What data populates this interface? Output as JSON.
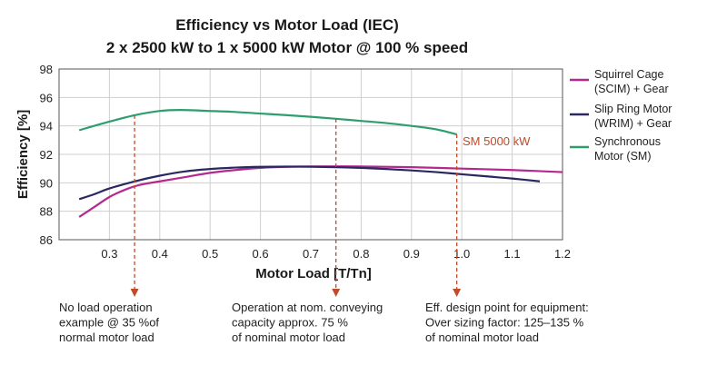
{
  "chart_data": {
    "type": "line",
    "title": "Efficiency vs Motor Load (IEC)",
    "subtitle": "2 x 2500 kW to 1 x 5000 kW Motor @ 100 % speed",
    "xlabel": "Motor Load [T/Tn]",
    "ylabel": "Efficiency [%]",
    "xlim": [
      0.2,
      1.2
    ],
    "ylim": [
      86,
      98
    ],
    "xticks": [
      "0.3",
      "0.4",
      "0.5",
      "0.6",
      "0.7",
      "0.8",
      "0.9",
      "1.0",
      "1.1",
      "1.2"
    ],
    "yticks": [
      "86",
      "88",
      "90",
      "92",
      "94",
      "96",
      "98"
    ],
    "grid": true,
    "legend_position": "right",
    "series": [
      {
        "name": "Squirrel Cage (SCIM) + Gear",
        "legend_lines": [
          "Squirrel Cage",
          "(SCIM) + Gear"
        ],
        "color": "#b5288f",
        "points": [
          [
            0.24,
            87.6
          ],
          [
            0.27,
            88.3
          ],
          [
            0.3,
            89.0
          ],
          [
            0.33,
            89.5
          ],
          [
            0.36,
            89.85
          ],
          [
            0.4,
            90.1
          ],
          [
            0.45,
            90.4
          ],
          [
            0.5,
            90.7
          ],
          [
            0.55,
            90.9
          ],
          [
            0.6,
            91.05
          ],
          [
            0.65,
            91.12
          ],
          [
            0.7,
            91.15
          ],
          [
            0.8,
            91.15
          ],
          [
            0.9,
            91.1
          ],
          [
            1.0,
            91.0
          ],
          [
            1.1,
            90.9
          ],
          [
            1.2,
            90.75
          ]
        ]
      },
      {
        "name": "Slip Ring Motor (WRIM) + Gear",
        "legend_lines": [
          "Slip Ring Motor",
          "(WRIM) + Gear"
        ],
        "color": "#2a2860",
        "points": [
          [
            0.24,
            88.85
          ],
          [
            0.27,
            89.2
          ],
          [
            0.3,
            89.6
          ],
          [
            0.35,
            90.1
          ],
          [
            0.4,
            90.5
          ],
          [
            0.45,
            90.8
          ],
          [
            0.5,
            90.97
          ],
          [
            0.55,
            91.07
          ],
          [
            0.6,
            91.12
          ],
          [
            0.65,
            91.14
          ],
          [
            0.7,
            91.13
          ],
          [
            0.75,
            91.1
          ],
          [
            0.8,
            91.05
          ],
          [
            0.85,
            90.97
          ],
          [
            0.9,
            90.87
          ],
          [
            0.95,
            90.75
          ],
          [
            1.0,
            90.6
          ],
          [
            1.05,
            90.45
          ],
          [
            1.1,
            90.3
          ],
          [
            1.155,
            90.1
          ]
        ]
      },
      {
        "name": "Synchronous Motor (SM)",
        "legend_lines": [
          "Synchronous",
          "Motor (SM)"
        ],
        "color": "#2e9e6e",
        "points": [
          [
            0.24,
            93.7
          ],
          [
            0.3,
            94.3
          ],
          [
            0.35,
            94.75
          ],
          [
            0.4,
            95.05
          ],
          [
            0.44,
            95.12
          ],
          [
            0.5,
            95.05
          ],
          [
            0.55,
            94.98
          ],
          [
            0.6,
            94.87
          ],
          [
            0.65,
            94.76
          ],
          [
            0.7,
            94.64
          ],
          [
            0.75,
            94.5
          ],
          [
            0.8,
            94.35
          ],
          [
            0.85,
            94.2
          ],
          [
            0.9,
            94.0
          ],
          [
            0.95,
            93.75
          ],
          [
            0.99,
            93.4
          ]
        ]
      }
    ],
    "annotations": [
      {
        "x": 0.35,
        "y": 94.75,
        "color": "#c04a2a",
        "lines": [
          "No load operation",
          "example @ 35 %of",
          "normal motor load"
        ]
      },
      {
        "x": 0.75,
        "y": 94.5,
        "color": "#c04a2a",
        "lines": [
          "Operation at nom. conveying",
          "capacity approx. 75 %",
          "of nominal motor load"
        ]
      },
      {
        "x": 0.99,
        "y": 93.4,
        "color": "#c04a2a",
        "lines": [
          "Eff. design point for equipment:",
          "Over sizing factor: 125–135 %",
          "of nominal motor load"
        ]
      }
    ],
    "point_label": "SM 5000 kW"
  },
  "colors": {
    "axis": "#555555",
    "grid": "#cfcfcf",
    "annotation": "#c04a2a"
  }
}
